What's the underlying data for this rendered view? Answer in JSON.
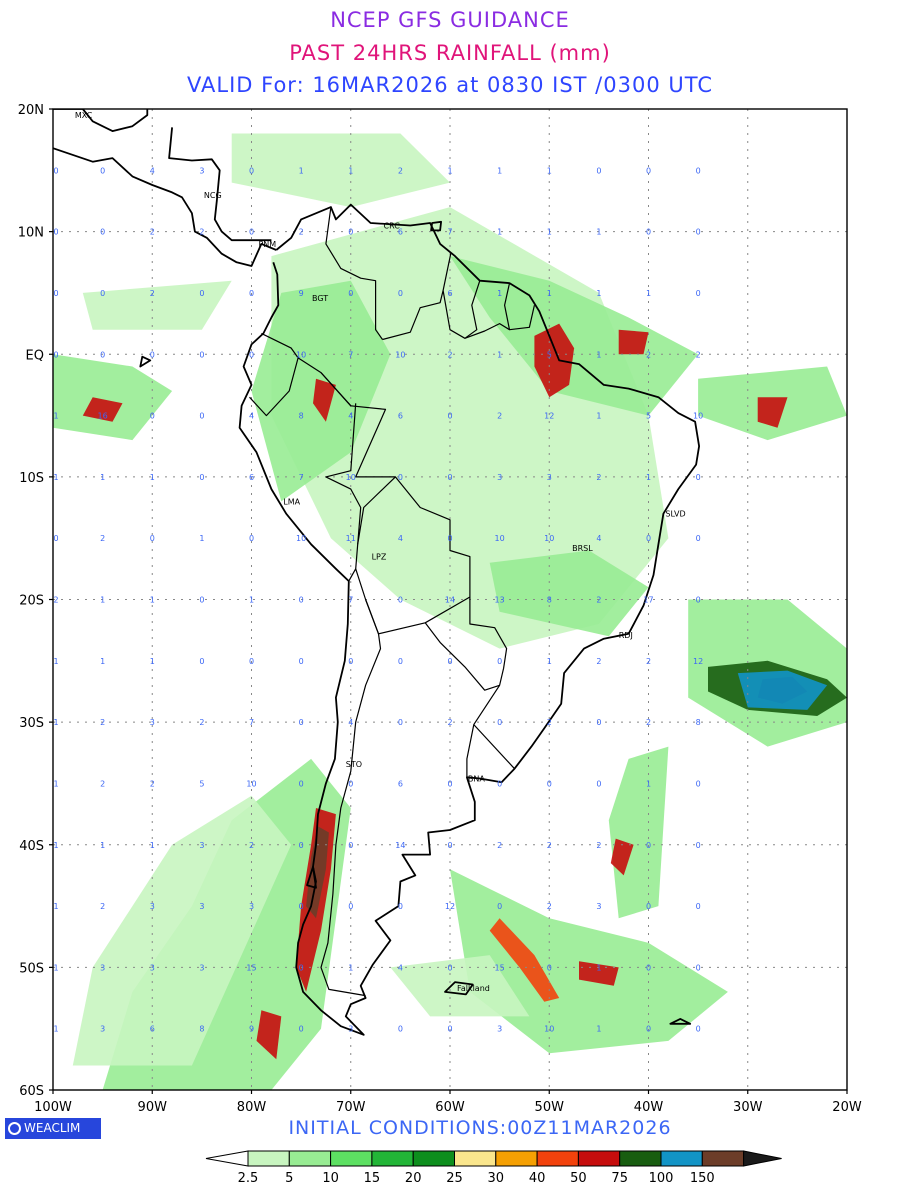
{
  "header": {
    "title": "NCEP GFS GUIDANCE",
    "subtitle": "PAST 24HRS RAINFALL (mm)",
    "valid": "VALID For: 16MAR2026 at 0830 IST /0300 UTC"
  },
  "footer": {
    "initial_conditions": "INITIAL CONDITIONS:00Z11MAR2026",
    "logo_text": "WEACLIM"
  },
  "colors": {
    "title": "#8a2be2",
    "subtitle": "#e0147a",
    "valid": "#2e45ff",
    "grid_value_text": "#3c67f5"
  },
  "map": {
    "lat_labels": [
      "20N",
      "10N",
      "EQ",
      "10S",
      "20S",
      "30S",
      "40S",
      "50S",
      "60S"
    ],
    "lon_labels": [
      "100W",
      "90W",
      "80W",
      "70W",
      "60W",
      "50W",
      "40W",
      "30W",
      "20W"
    ],
    "cities": [
      {
        "name": "MXC",
        "lon": -98.0,
        "lat": 19.5
      },
      {
        "name": "NCG",
        "lon": -85.0,
        "lat": 13.0
      },
      {
        "name": "PNM",
        "lon": -79.5,
        "lat": 9.0
      },
      {
        "name": "CRC",
        "lon": -66.9,
        "lat": 10.5
      },
      {
        "name": "BGT",
        "lon": -74.1,
        "lat": 4.6
      },
      {
        "name": "LMA",
        "lon": -77.0,
        "lat": -12.0
      },
      {
        "name": "LPZ",
        "lon": -68.1,
        "lat": -16.5
      },
      {
        "name": "BRSL",
        "lon": -47.9,
        "lat": -15.8
      },
      {
        "name": "SLVD",
        "lon": -38.5,
        "lat": -13.0
      },
      {
        "name": "RDJ",
        "lon": -43.2,
        "lat": -22.9
      },
      {
        "name": "STO",
        "lon": -70.7,
        "lat": -33.4
      },
      {
        "name": "BNA",
        "lon": -58.4,
        "lat": -34.6
      },
      {
        "name": "Falkland",
        "lon": -59.5,
        "lat": -51.7
      }
    ],
    "grid_values": [
      [
        0,
        0,
        4,
        3,
        0,
        1,
        1,
        2,
        1,
        1,
        1,
        0,
        0,
        0
      ],
      [
        0,
        0,
        2,
        2,
        0,
        2,
        0,
        6,
        7,
        1,
        1,
        1,
        0,
        0
      ],
      [
        0,
        0,
        2,
        0,
        0,
        9,
        0,
        0,
        6,
        1,
        1,
        1,
        1,
        0
      ],
      [
        0,
        0,
        0,
        0,
        0,
        10,
        7,
        10,
        2,
        1,
        5,
        1,
        2,
        2
      ],
      [
        1,
        16,
        0,
        0,
        4,
        8,
        4,
        6,
        0,
        2,
        12,
        1,
        5,
        10
      ],
      [
        1,
        1,
        1,
        0,
        6,
        7,
        10,
        0,
        0,
        3,
        3,
        2,
        1,
        0
      ],
      [
        0,
        2,
        0,
        1,
        0,
        10,
        11,
        4,
        0,
        10,
        10,
        4,
        0,
        0
      ],
      [
        2,
        1,
        1,
        0,
        1,
        0,
        7,
        0,
        14,
        13,
        8,
        2,
        17,
        0
      ],
      [
        1,
        1,
        1,
        0,
        0,
        0,
        0,
        0,
        0,
        0,
        1,
        2,
        2,
        12
      ],
      [
        1,
        2,
        3,
        2,
        7,
        0,
        4,
        0,
        2,
        0,
        2,
        0,
        2,
        8
      ],
      [
        1,
        2,
        2,
        5,
        10,
        0,
        0,
        6,
        0,
        0,
        0,
        0,
        1,
        0
      ],
      [
        1,
        1,
        1,
        3,
        2,
        0,
        0,
        14,
        0,
        2,
        2,
        2,
        0,
        0
      ],
      [
        1,
        2,
        3,
        3,
        3,
        0,
        0,
        0,
        12,
        0,
        2,
        3,
        0,
        0
      ],
      [
        1,
        3,
        3,
        3,
        15,
        0,
        1,
        4,
        0,
        15,
        0,
        1,
        0,
        0
      ],
      [
        1,
        3,
        6,
        8,
        9,
        0,
        3,
        0,
        0,
        3,
        10,
        1,
        0,
        0
      ]
    ],
    "legend": {
      "labels": [
        "2.5",
        "5",
        "10",
        "15",
        "20",
        "25",
        "30",
        "40",
        "50",
        "75",
        "100",
        "150"
      ],
      "colors": [
        "#c8f5c0",
        "#98ec93",
        "#5de062",
        "#22b537",
        "#0d8e1d",
        "#fae68d",
        "#f5a003",
        "#f2420c",
        "#c60d0d",
        "#185d10",
        "#1294c6",
        "#6c3d29",
        "#1a1a1a"
      ]
    },
    "rain_areas": [
      {
        "name": "chile-south",
        "color_index": 8,
        "points": [
          [
            -73.5,
            -37
          ],
          [
            -71.5,
            -37.5
          ],
          [
            -72,
            -42
          ],
          [
            -73,
            -47
          ],
          [
            -74.5,
            -52
          ],
          [
            -75.5,
            -50
          ],
          [
            -75,
            -45
          ],
          [
            -74,
            -40
          ]
        ]
      },
      {
        "name": "chile-core",
        "color_index": 11,
        "points": [
          [
            -73.3,
            -38.5
          ],
          [
            -72.2,
            -39
          ],
          [
            -72.5,
            -42
          ],
          [
            -73.5,
            -46
          ],
          [
            -74.5,
            -45
          ],
          [
            -74,
            -41
          ]
        ]
      },
      {
        "name": "atl-27s",
        "color_index": 9,
        "points": [
          [
            -34,
            -25.5
          ],
          [
            -28,
            -25
          ],
          [
            -22,
            -26.5
          ],
          [
            -20,
            -28
          ],
          [
            -23,
            -29.5
          ],
          [
            -30,
            -29
          ],
          [
            -34,
            -27.5
          ]
        ]
      },
      {
        "name": "atl-27s-core",
        "color_index": 12,
        "points": [
          [
            -28.5,
            -26.5
          ],
          [
            -25.5,
            -26.3
          ],
          [
            -24,
            -27.5
          ],
          [
            -26.5,
            -28.5
          ],
          [
            -29,
            -28
          ]
        ]
      },
      {
        "name": "atl-27s-blue",
        "color_index": 10,
        "points": [
          [
            -31,
            -26
          ],
          [
            -26,
            -25.8
          ],
          [
            -22,
            -27
          ],
          [
            -24,
            -29
          ],
          [
            -30,
            -28.8
          ]
        ]
      },
      {
        "name": "amapa",
        "color_index": 8,
        "points": [
          [
            -51.5,
            1.5
          ],
          [
            -49,
            2.5
          ],
          [
            -47.5,
            0.5
          ],
          [
            -48,
            -2.5
          ],
          [
            -50,
            -3.5
          ],
          [
            -51.5,
            -1
          ]
        ]
      },
      {
        "name": "amapa2",
        "color_index": 8,
        "points": [
          [
            -43,
            2
          ],
          [
            -40,
            1.8
          ],
          [
            -40.5,
            0
          ],
          [
            -43,
            0
          ]
        ]
      },
      {
        "name": "ne-brazil",
        "color_index": 8,
        "points": [
          [
            -29,
            -3.5
          ],
          [
            -26,
            -3.5
          ],
          [
            -27,
            -6
          ],
          [
            -29,
            -5.5
          ]
        ]
      },
      {
        "name": "pac-3s",
        "color_index": 8,
        "points": [
          [
            -96,
            -3.5
          ],
          [
            -93,
            -4
          ],
          [
            -94,
            -5.5
          ],
          [
            -97,
            -5
          ]
        ]
      },
      {
        "name": "peru-n",
        "color_index": 8,
        "points": [
          [
            -73.5,
            -2
          ],
          [
            -71.5,
            -2.5
          ],
          [
            -72.5,
            -5.5
          ],
          [
            -73.8,
            -4
          ]
        ]
      },
      {
        "name": "sw-atl-40s",
        "color_index": 8,
        "points": [
          [
            -43.3,
            -39.5
          ],
          [
            -41.5,
            -40
          ],
          [
            -42.5,
            -42.5
          ],
          [
            -43.8,
            -41.5
          ]
        ]
      },
      {
        "name": "sw-atl-50s",
        "color_index": 8,
        "points": [
          [
            -47,
            -49.5
          ],
          [
            -43,
            -50
          ],
          [
            -43.5,
            -51.5
          ],
          [
            -47,
            -51
          ]
        ]
      },
      {
        "name": "south-pac",
        "color_index": 8,
        "points": [
          [
            -79,
            -53.5
          ],
          [
            -77,
            -54
          ],
          [
            -77.5,
            -57.5
          ],
          [
            -79.5,
            -56
          ]
        ]
      },
      {
        "name": "sw-atl-band",
        "color_index": 7,
        "points": [
          [
            -55,
            -46
          ],
          [
            -51.5,
            -49
          ],
          [
            -49,
            -52.5
          ],
          [
            -50.5,
            -52.8
          ],
          [
            -53,
            -50
          ],
          [
            -56,
            -47
          ]
        ]
      }
    ]
  }
}
